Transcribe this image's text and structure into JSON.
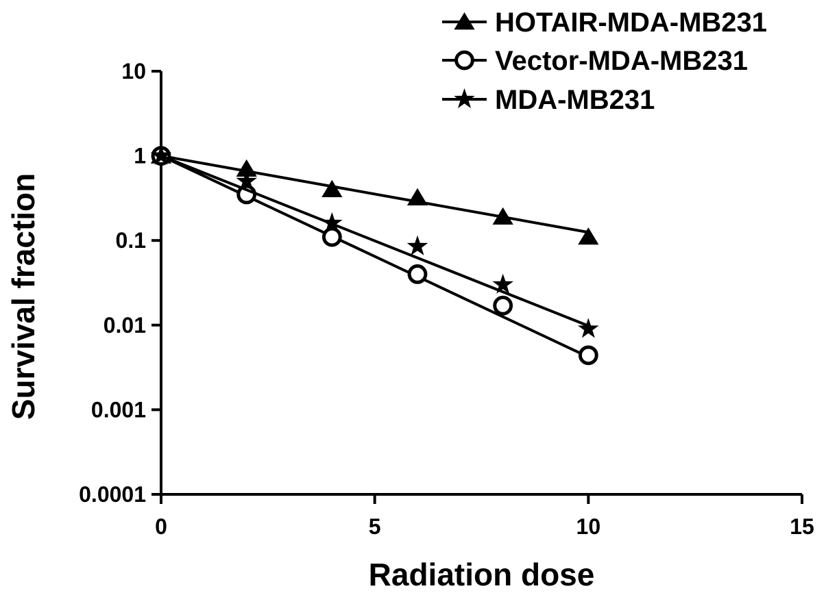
{
  "chart_data": {
    "type": "line",
    "xlabel": "Radiation dose",
    "ylabel": "Survival fraction",
    "x_scale": "linear",
    "y_scale": "log",
    "xlim": [
      0,
      15
    ],
    "ylim": [
      0.0001,
      10
    ],
    "x_ticks": [
      "0",
      "5",
      "10",
      "15"
    ],
    "y_ticks": [
      "10",
      "1",
      "0.1",
      "0.01",
      "0.001",
      "0.0001"
    ],
    "legend_position": "top-right",
    "series": [
      {
        "name": "HOTAIR-MDA-MB231",
        "marker": "triangle",
        "x": [
          0,
          2,
          4,
          6,
          8,
          10
        ],
        "y": [
          1.0,
          0.7,
          0.4,
          0.32,
          0.19,
          0.11
        ],
        "fit": {
          "x": [
            0,
            10
          ],
          "y": [
            1.0,
            0.125
          ]
        }
      },
      {
        "name": "Vector-MDA-MB231",
        "marker": "circle",
        "x": [
          0,
          2,
          4,
          6,
          8,
          10
        ],
        "y": [
          1.0,
          0.35,
          0.11,
          0.04,
          0.017,
          0.0044
        ],
        "fit": {
          "x": [
            0,
            10
          ],
          "y": [
            1.0,
            0.0042
          ]
        }
      },
      {
        "name": "MDA-MB231",
        "marker": "star",
        "x": [
          0,
          2,
          4,
          6,
          8,
          10
        ],
        "y": [
          1.0,
          0.5,
          0.16,
          0.085,
          0.03,
          0.009
        ],
        "fit": {
          "x": [
            0,
            10
          ],
          "y": [
            1.0,
            0.0098
          ]
        }
      }
    ]
  }
}
